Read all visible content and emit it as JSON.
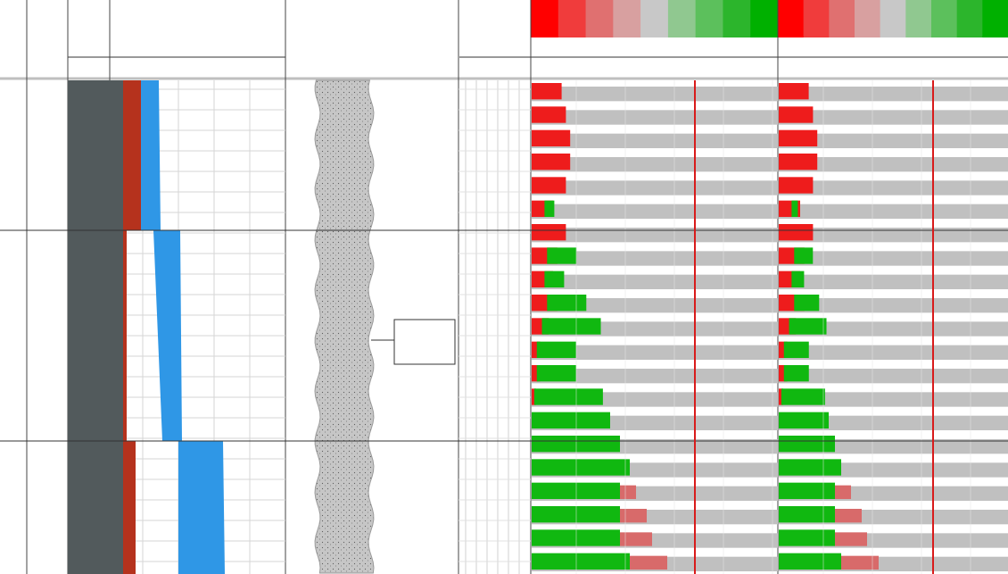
{
  "colors": {
    "background": "#ffffff",
    "grid_line": "#d6d6d6",
    "major_line": "#000000",
    "track_dark": "#525a5c",
    "track_red": "#b5321d",
    "track_blue": "#2f97e6",
    "lithology_fill": "#c4c4c4",
    "lithology_dot": "#5c5c5c",
    "cutoff_line": "#d81b1b",
    "bar_gray": "#c0c0c0",
    "legend_scale": [
      "#ff0000",
      "#f03c3c",
      "#e07070",
      "#d8a0a0",
      "#c8c8c8",
      "#90c890",
      "#5cc05c",
      "#2cb52c",
      "#00b000"
    ]
  },
  "tracks": {
    "depth_track": {
      "label": "",
      "interactable": false
    },
    "composite_fill_track": {
      "bands": [
        {
          "left_edge": [
            0.0,
            0.0,
            0.0
          ],
          "red_edge": [
            0.12,
            0.14,
            0.16
          ],
          "blue_edge": [
            0.22,
            0.42,
            0.62
          ]
        }
      ]
    },
    "lithology_track": {
      "pattern": "sandstone-dotted"
    },
    "annotation_box": {
      "label": ""
    },
    "heatmap_track_1": {
      "legend_ticks": 9
    },
    "heatmap_track_2": {
      "legend_ticks": 9
    }
  },
  "rows": [
    {
      "r": -0.7,
      "g": 0.0,
      "gray": 1.0
    },
    {
      "r": -0.8,
      "g": 0.0,
      "gray": 1.0
    },
    {
      "r": -0.9,
      "g": 0.0,
      "gray": 1.0
    },
    {
      "r": -0.9,
      "g": 0.0,
      "gray": 1.0
    },
    {
      "r": -0.8,
      "g": 0.0,
      "gray": 1.0
    },
    {
      "r": -0.5,
      "g": 0.1,
      "gray": 1.0
    },
    {
      "r": -0.8,
      "g": 0.0,
      "gray": 1.0
    },
    {
      "r": -0.6,
      "g": 0.3,
      "gray": 1.0
    },
    {
      "r": -0.5,
      "g": 0.2,
      "gray": 1.0
    },
    {
      "r": -0.6,
      "g": 0.4,
      "gray": 1.0
    },
    {
      "r": -0.4,
      "g": 0.6,
      "gray": 1.0
    },
    {
      "r": -0.2,
      "g": 0.4,
      "gray": 1.0
    },
    {
      "r": -0.2,
      "g": 0.4,
      "gray": 1.0
    },
    {
      "r": -0.1,
      "g": 0.7,
      "gray": 1.0
    },
    {
      "r": 0.0,
      "g": 0.8,
      "gray": 1.0
    },
    {
      "r": 0.0,
      "g": 0.9,
      "gray": 1.0
    },
    {
      "r": 0.0,
      "g": 1.0,
      "gray": 1.0
    },
    {
      "r": 0.3,
      "g": 0.9,
      "gray": 1.0
    },
    {
      "r": 0.5,
      "g": 0.9,
      "gray": 1.0
    },
    {
      "r": 0.6,
      "g": 0.9,
      "gray": 1.0
    },
    {
      "r": 0.7,
      "g": 1.0,
      "gray": 1.0
    }
  ]
}
